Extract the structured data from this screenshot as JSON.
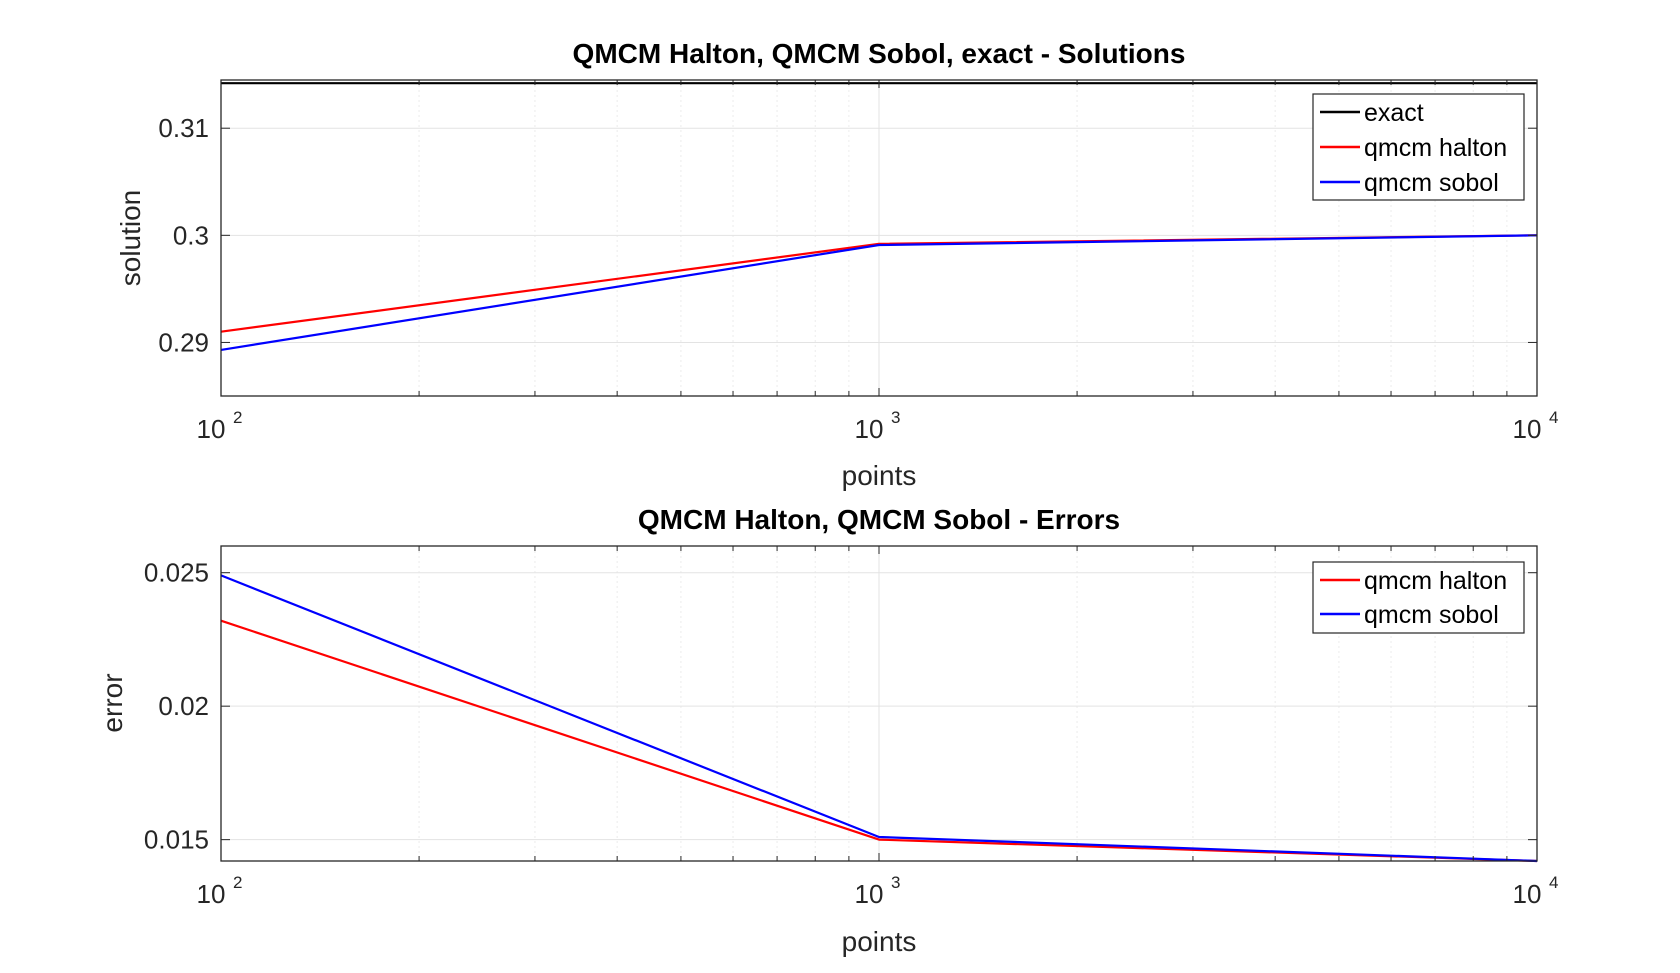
{
  "chart_data": [
    {
      "type": "line",
      "title": "QMCM Halton, QMCM Sobol, exact - Solutions",
      "xlabel": "points",
      "ylabel": "solution",
      "xscale": "log",
      "xlim": [
        100,
        10000
      ],
      "ylim": [
        0.285,
        0.3145
      ],
      "xticks": [
        {
          "base": "10",
          "exp": "2"
        },
        {
          "base": "10",
          "exp": "3"
        },
        {
          "base": "10",
          "exp": "4"
        }
      ],
      "yticks": [
        {
          "value": 0.29,
          "label": "0.29"
        },
        {
          "value": 0.3,
          "label": "0.3"
        },
        {
          "value": 0.31,
          "label": "0.31"
        }
      ],
      "grid": true,
      "legend_position": "top-right",
      "x": [
        100,
        1000,
        10000
      ],
      "series": [
        {
          "name": "exact",
          "color": "#000000",
          "values": [
            0.3142,
            0.3142,
            0.3142
          ]
        },
        {
          "name": "qmcm halton",
          "color": "#ff0000",
          "values": [
            0.291,
            0.2992,
            0.3
          ]
        },
        {
          "name": "qmcm sobol",
          "color": "#0000ff",
          "values": [
            0.2893,
            0.2991,
            0.3
          ]
        }
      ]
    },
    {
      "type": "line",
      "title": "QMCM Halton, QMCM Sobol - Errors",
      "xlabel": "points",
      "ylabel": "error",
      "xscale": "log",
      "xlim": [
        100,
        10000
      ],
      "ylim": [
        0.0142,
        0.026
      ],
      "xticks": [
        {
          "base": "10",
          "exp": "2"
        },
        {
          "base": "10",
          "exp": "3"
        },
        {
          "base": "10",
          "exp": "4"
        }
      ],
      "yticks": [
        {
          "value": 0.015,
          "label": "0.015"
        },
        {
          "value": 0.02,
          "label": "0.02"
        },
        {
          "value": 0.025,
          "label": "0.025"
        }
      ],
      "grid": true,
      "legend_position": "top-right",
      "x": [
        100,
        1000,
        10000
      ],
      "series": [
        {
          "name": "qmcm halton",
          "color": "#ff0000",
          "values": [
            0.0232,
            0.015,
            0.0142
          ]
        },
        {
          "name": "qmcm sobol",
          "color": "#0000ff",
          "values": [
            0.0249,
            0.0151,
            0.0142
          ]
        }
      ]
    }
  ]
}
